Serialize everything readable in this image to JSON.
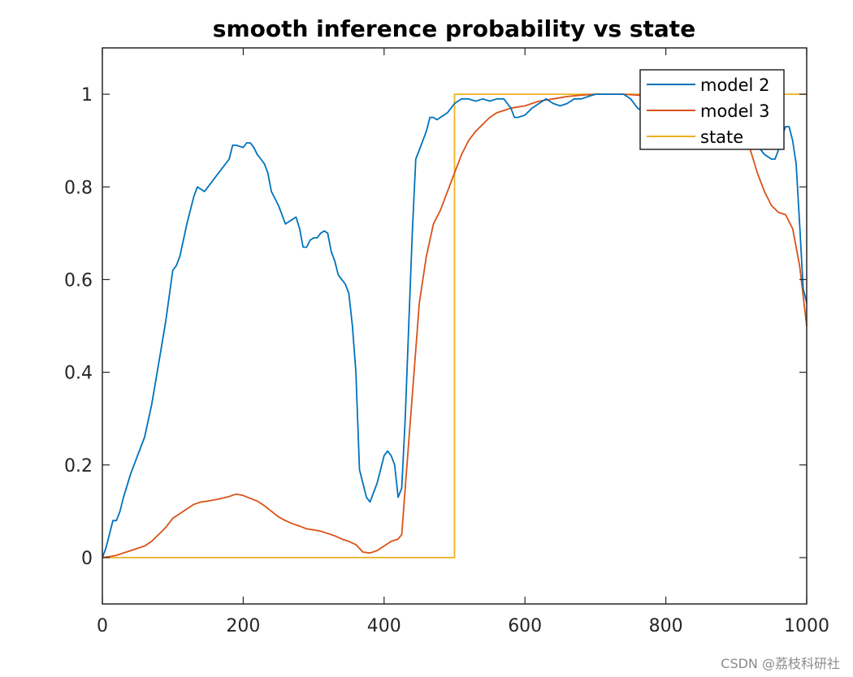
{
  "watermark": "CSDN @荔枝科研社",
  "chart_data": {
    "type": "line",
    "title": "smooth inference probability vs state",
    "xlabel": "",
    "ylabel": "",
    "xlim": [
      0,
      1000
    ],
    "ylim": [
      -0.1,
      1.1
    ],
    "xticks": [
      0,
      200,
      400,
      600,
      800,
      1000
    ],
    "yticks": [
      0,
      0.2,
      0.4,
      0.6,
      0.8,
      1
    ],
    "ytick_labels": [
      "0",
      "0.2",
      "0.4",
      "0.6",
      "0.8",
      "1"
    ],
    "legend_position": "top-right",
    "series": [
      {
        "name": "model 2",
        "color": "#0072BD",
        "x": [
          0,
          5,
          10,
          15,
          20,
          25,
          30,
          40,
          50,
          60,
          70,
          80,
          90,
          100,
          105,
          110,
          120,
          130,
          135,
          140,
          145,
          150,
          155,
          160,
          170,
          180,
          185,
          190,
          200,
          205,
          210,
          215,
          220,
          225,
          230,
          235,
          240,
          250,
          260,
          270,
          275,
          280,
          285,
          290,
          295,
          300,
          305,
          310,
          315,
          320,
          325,
          330,
          335,
          340,
          345,
          350,
          355,
          360,
          365,
          370,
          375,
          380,
          385,
          390,
          395,
          400,
          405,
          410,
          415,
          420,
          425,
          430,
          435,
          440,
          445,
          450,
          455,
          460,
          465,
          470,
          475,
          480,
          490,
          500,
          510,
          520,
          530,
          540,
          550,
          560,
          570,
          575,
          580,
          585,
          590,
          600,
          610,
          620,
          630,
          640,
          650,
          660,
          670,
          680,
          690,
          700,
          720,
          740,
          750,
          760,
          770,
          780,
          790,
          800,
          820,
          840,
          860,
          880,
          900,
          920,
          930,
          940,
          950,
          955,
          960,
          965,
          970,
          975,
          980,
          985,
          990,
          995,
          1000
        ],
        "y": [
          0,
          0.02,
          0.05,
          0.08,
          0.08,
          0.1,
          0.13,
          0.18,
          0.22,
          0.26,
          0.33,
          0.42,
          0.51,
          0.62,
          0.63,
          0.65,
          0.72,
          0.78,
          0.8,
          0.795,
          0.79,
          0.8,
          0.81,
          0.82,
          0.84,
          0.86,
          0.89,
          0.89,
          0.885,
          0.895,
          0.895,
          0.885,
          0.87,
          0.86,
          0.85,
          0.83,
          0.79,
          0.76,
          0.72,
          0.73,
          0.735,
          0.71,
          0.67,
          0.67,
          0.685,
          0.69,
          0.69,
          0.7,
          0.705,
          0.7,
          0.66,
          0.64,
          0.61,
          0.6,
          0.59,
          0.57,
          0.5,
          0.4,
          0.19,
          0.16,
          0.13,
          0.12,
          0.14,
          0.16,
          0.19,
          0.22,
          0.23,
          0.22,
          0.2,
          0.13,
          0.15,
          0.3,
          0.5,
          0.7,
          0.86,
          0.88,
          0.9,
          0.92,
          0.95,
          0.95,
          0.945,
          0.95,
          0.96,
          0.98,
          0.99,
          0.99,
          0.985,
          0.99,
          0.985,
          0.99,
          0.99,
          0.98,
          0.97,
          0.95,
          0.95,
          0.955,
          0.97,
          0.98,
          0.99,
          0.98,
          0.975,
          0.98,
          0.99,
          0.99,
          0.995,
          1,
          1,
          1,
          0.99,
          0.97,
          0.96,
          0.96,
          0.97,
          0.98,
          0.99,
          0.99,
          0.98,
          0.96,
          0.94,
          0.9,
          0.89,
          0.87,
          0.86,
          0.86,
          0.88,
          0.91,
          0.93,
          0.93,
          0.9,
          0.85,
          0.72,
          0.58,
          0.55
        ]
      },
      {
        "name": "model 3",
        "color": "#D95319",
        "x": [
          0,
          10,
          20,
          30,
          40,
          50,
          60,
          70,
          80,
          90,
          100,
          110,
          120,
          130,
          140,
          150,
          160,
          170,
          180,
          190,
          200,
          210,
          220,
          230,
          240,
          250,
          260,
          270,
          280,
          290,
          300,
          310,
          320,
          330,
          340,
          350,
          360,
          370,
          380,
          390,
          400,
          410,
          420,
          425,
          430,
          440,
          450,
          460,
          470,
          480,
          490,
          500,
          510,
          520,
          530,
          540,
          550,
          560,
          570,
          580,
          600,
          620,
          640,
          660,
          680,
          700,
          720,
          740,
          760,
          780,
          800,
          820,
          840,
          860,
          880,
          900,
          910,
          920,
          930,
          940,
          950,
          960,
          970,
          980,
          990,
          1000
        ],
        "y": [
          0,
          0.002,
          0.005,
          0.01,
          0.015,
          0.02,
          0.025,
          0.035,
          0.05,
          0.065,
          0.085,
          0.095,
          0.105,
          0.115,
          0.12,
          0.122,
          0.125,
          0.128,
          0.132,
          0.137,
          0.134,
          0.128,
          0.122,
          0.112,
          0.1,
          0.088,
          0.08,
          0.073,
          0.068,
          0.062,
          0.06,
          0.057,
          0.052,
          0.047,
          0.04,
          0.035,
          0.028,
          0.012,
          0.01,
          0.015,
          0.025,
          0.035,
          0.04,
          0.05,
          0.15,
          0.35,
          0.55,
          0.65,
          0.72,
          0.75,
          0.79,
          0.83,
          0.87,
          0.9,
          0.92,
          0.935,
          0.95,
          0.96,
          0.965,
          0.97,
          0.975,
          0.985,
          0.99,
          0.995,
          0.998,
          1,
          1,
          1,
          0.998,
          0.995,
          0.99,
          0.985,
          0.975,
          0.96,
          0.95,
          0.94,
          0.93,
          0.88,
          0.83,
          0.79,
          0.76,
          0.745,
          0.74,
          0.71,
          0.63,
          0.5
        ]
      },
      {
        "name": "state",
        "color": "#EDB120",
        "x": [
          0,
          500,
          500,
          1000
        ],
        "y": [
          0,
          0,
          1,
          1
        ]
      }
    ]
  }
}
